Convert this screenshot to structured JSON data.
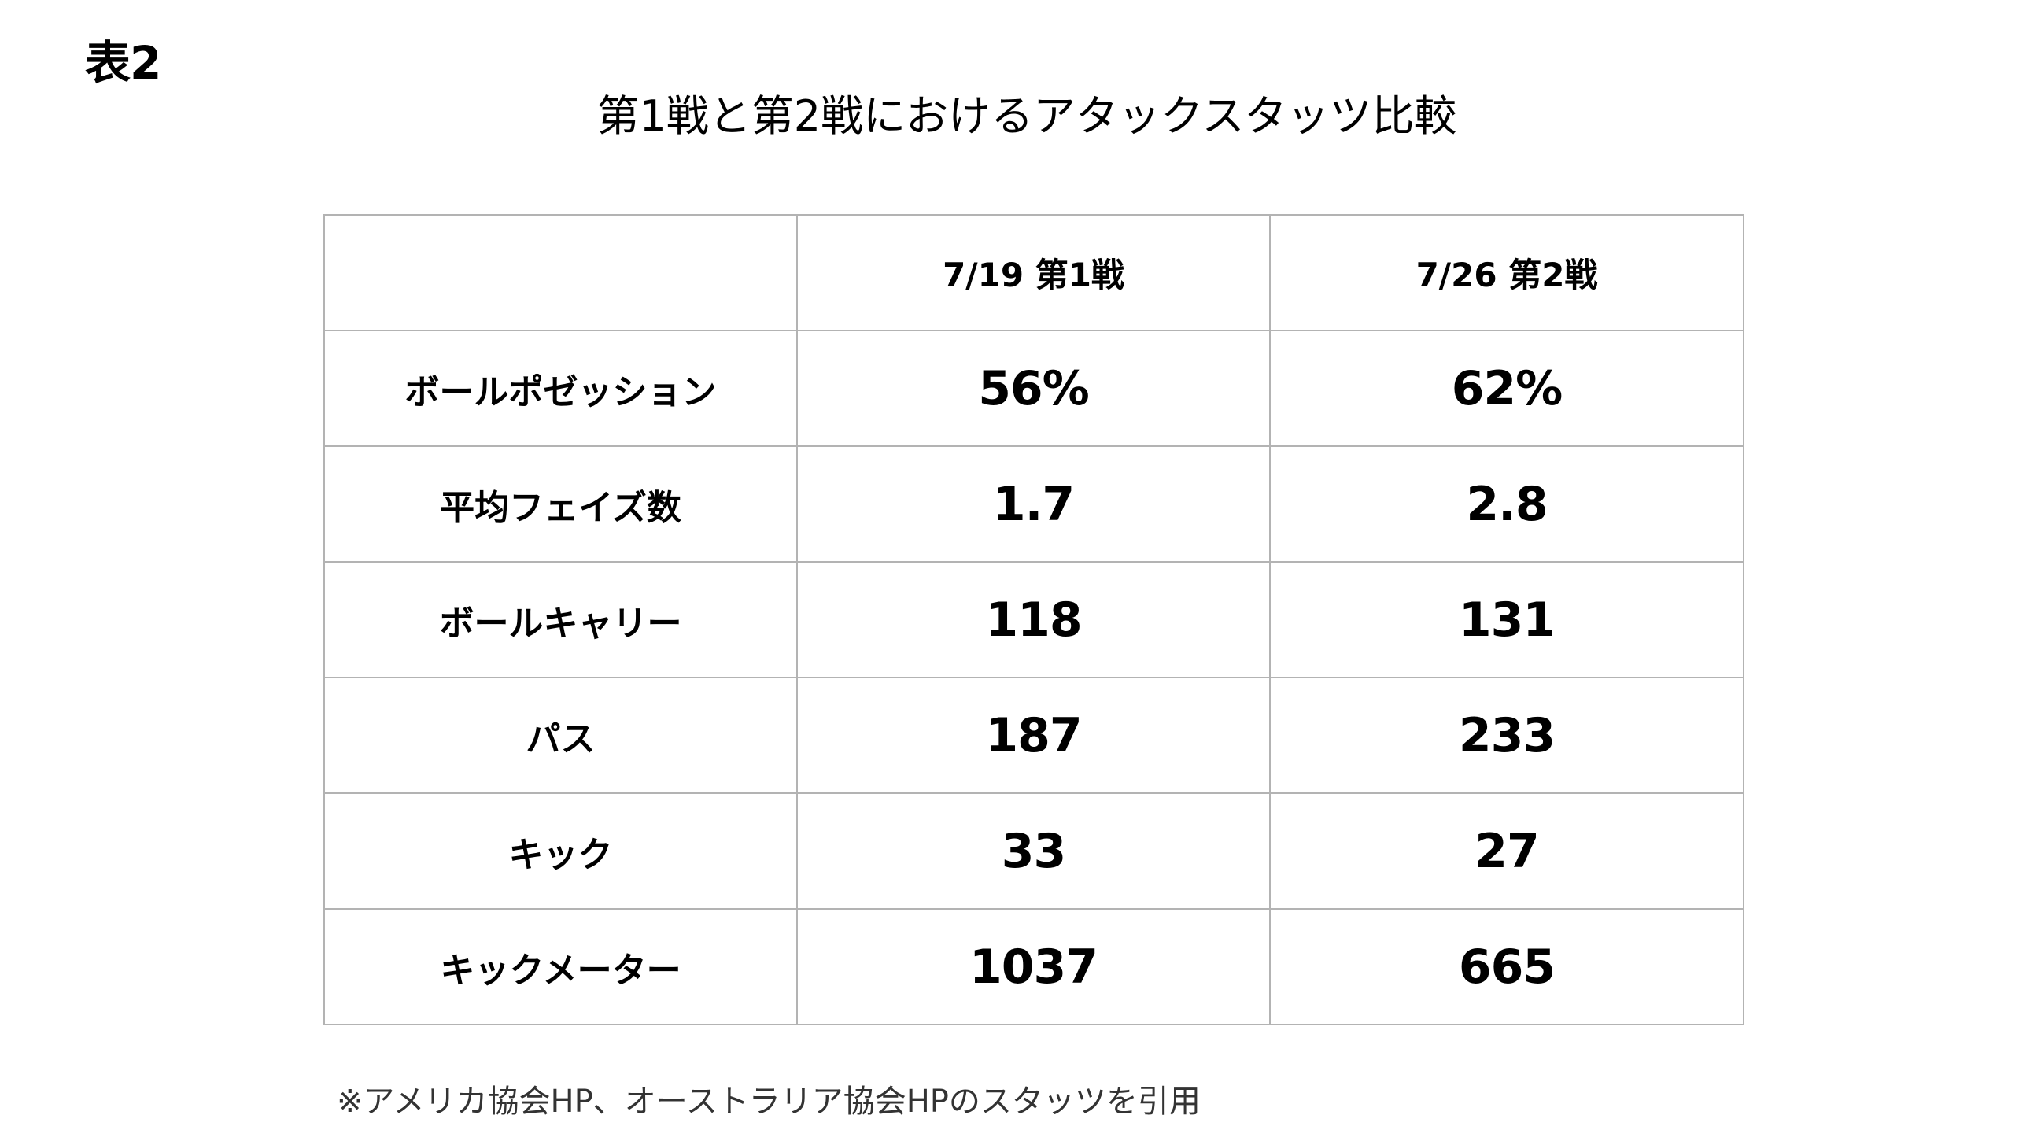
{
  "label_tag": "表2",
  "chart_data": {
    "type": "table",
    "title": "第1戦と第2戦におけるアタックスタッツ比較",
    "columns": [
      "",
      "7/19 第1戦",
      "7/26 第2戦"
    ],
    "rows": [
      {
        "label": "ボールポゼッション",
        "values": [
          "56%",
          "62%"
        ]
      },
      {
        "label": "平均フェイズ数",
        "values": [
          "1.7",
          "2.8"
        ]
      },
      {
        "label": "ボールキャリー",
        "values": [
          "118",
          "131"
        ]
      },
      {
        "label": "パス",
        "values": [
          "187",
          "233"
        ]
      },
      {
        "label": "キック",
        "values": [
          "33",
          "27"
        ]
      },
      {
        "label": "キックメーター",
        "values": [
          "1037",
          "665"
        ]
      }
    ]
  },
  "footnote": "※アメリカ協会HP、オーストラリア協会HPのスタッツを引用"
}
